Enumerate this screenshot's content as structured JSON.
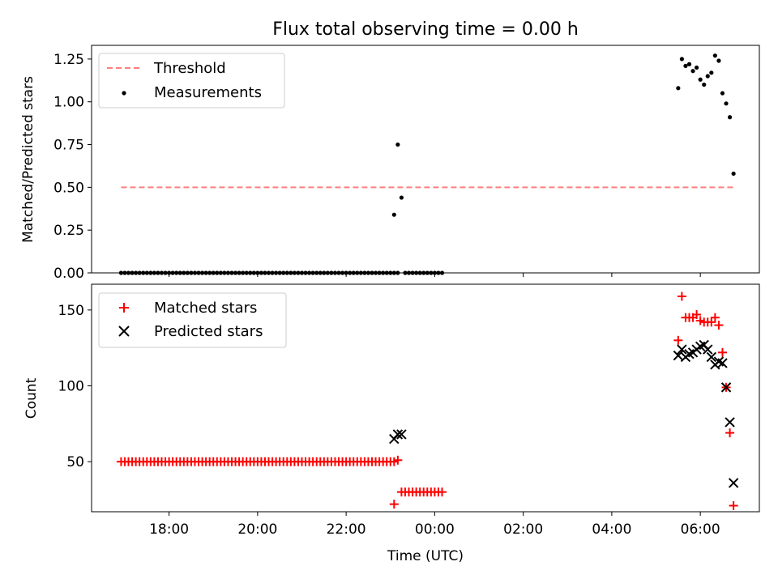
{
  "chart_data": [
    {
      "type": "scatter",
      "title": "Flux total observing time = 0.00 h",
      "xlabel": "",
      "ylabel": "Matched/Predicted stars",
      "ylim": [
        0,
        1.33
      ],
      "yticks": [
        "0.00",
        "0.25",
        "0.50",
        "0.75",
        "1.00",
        "1.25"
      ],
      "legend": {
        "placement": "top-left",
        "entries": [
          "Threshold",
          "Measurements"
        ]
      },
      "threshold": {
        "name": "Threshold",
        "value": 0.5,
        "x_start": "16:55",
        "x_end": "06:45",
        "color": "#ff7f7f"
      },
      "series": [
        {
          "name": "Measurements",
          "color": "#000000",
          "marker": "dot",
          "points": [
            [
              "16:55",
              0
            ],
            [
              "17:00",
              0
            ],
            [
              "17:05",
              0
            ],
            [
              "17:10",
              0
            ],
            [
              "17:15",
              0
            ],
            [
              "17:20",
              0
            ],
            [
              "17:25",
              0
            ],
            [
              "17:30",
              0
            ],
            [
              "17:35",
              0
            ],
            [
              "17:40",
              0
            ],
            [
              "17:45",
              0
            ],
            [
              "17:50",
              0
            ],
            [
              "17:55",
              0
            ],
            [
              "18:00",
              0
            ],
            [
              "18:05",
              0
            ],
            [
              "18:10",
              0
            ],
            [
              "18:15",
              0
            ],
            [
              "18:20",
              0
            ],
            [
              "18:25",
              0
            ],
            [
              "18:30",
              0
            ],
            [
              "18:35",
              0
            ],
            [
              "18:40",
              0
            ],
            [
              "18:45",
              0
            ],
            [
              "18:50",
              0
            ],
            [
              "18:55",
              0
            ],
            [
              "19:00",
              0
            ],
            [
              "19:05",
              0
            ],
            [
              "19:10",
              0
            ],
            [
              "19:15",
              0
            ],
            [
              "19:20",
              0
            ],
            [
              "19:25",
              0
            ],
            [
              "19:30",
              0
            ],
            [
              "19:35",
              0
            ],
            [
              "19:40",
              0
            ],
            [
              "19:45",
              0
            ],
            [
              "19:50",
              0
            ],
            [
              "19:55",
              0
            ],
            [
              "20:00",
              0
            ],
            [
              "20:05",
              0
            ],
            [
              "20:10",
              0
            ],
            [
              "20:15",
              0
            ],
            [
              "20:20",
              0
            ],
            [
              "20:25",
              0
            ],
            [
              "20:30",
              0
            ],
            [
              "20:35",
              0
            ],
            [
              "20:40",
              0
            ],
            [
              "20:45",
              0
            ],
            [
              "20:50",
              0
            ],
            [
              "20:55",
              0
            ],
            [
              "21:00",
              0
            ],
            [
              "21:05",
              0
            ],
            [
              "21:10",
              0
            ],
            [
              "21:15",
              0
            ],
            [
              "21:20",
              0
            ],
            [
              "21:25",
              0
            ],
            [
              "21:30",
              0
            ],
            [
              "21:35",
              0
            ],
            [
              "21:40",
              0
            ],
            [
              "21:45",
              0
            ],
            [
              "21:50",
              0
            ],
            [
              "21:55",
              0
            ],
            [
              "22:00",
              0
            ],
            [
              "22:05",
              0
            ],
            [
              "22:10",
              0
            ],
            [
              "22:15",
              0
            ],
            [
              "22:20",
              0
            ],
            [
              "22:25",
              0
            ],
            [
              "22:30",
              0
            ],
            [
              "22:35",
              0
            ],
            [
              "22:40",
              0
            ],
            [
              "22:45",
              0
            ],
            [
              "22:50",
              0
            ],
            [
              "22:55",
              0
            ],
            [
              "23:00",
              0
            ],
            [
              "23:05",
              0
            ],
            [
              "23:10",
              0
            ],
            [
              "23:05",
              0.34
            ],
            [
              "23:10",
              0.75
            ],
            [
              "23:15",
              0.44
            ],
            [
              "23:20",
              0
            ],
            [
              "23:25",
              0
            ],
            [
              "23:30",
              0
            ],
            [
              "23:35",
              0
            ],
            [
              "23:40",
              0
            ],
            [
              "23:45",
              0
            ],
            [
              "23:50",
              0
            ],
            [
              "23:55",
              0
            ],
            [
              "00:00",
              0
            ],
            [
              "00:05",
              0
            ],
            [
              "00:10",
              0
            ],
            [
              "05:30",
              1.08
            ],
            [
              "05:35",
              1.25
            ],
            [
              "05:40",
              1.21
            ],
            [
              "05:45",
              1.22
            ],
            [
              "05:50",
              1.18
            ],
            [
              "05:55",
              1.2
            ],
            [
              "06:00",
              1.13
            ],
            [
              "06:05",
              1.1
            ],
            [
              "06:10",
              1.15
            ],
            [
              "06:15",
              1.17
            ],
            [
              "06:20",
              1.27
            ],
            [
              "06:25",
              1.24
            ],
            [
              "06:30",
              1.05
            ],
            [
              "06:35",
              0.99
            ],
            [
              "06:40",
              0.91
            ],
            [
              "06:45",
              0.58
            ]
          ]
        }
      ]
    },
    {
      "type": "scatter",
      "title": "",
      "xlabel": "Time (UTC)",
      "ylabel": "Count",
      "ylim": [
        17,
        167
      ],
      "yticks": [
        "50",
        "100",
        "150"
      ],
      "xticks": [
        "18:00",
        "20:00",
        "22:00",
        "00:00",
        "02:00",
        "04:00",
        "06:00"
      ],
      "xlim": [
        "16:15",
        "07:20"
      ],
      "legend": {
        "placement": "top-left",
        "entries": [
          "Matched stars",
          "Predicted stars"
        ]
      },
      "series": [
        {
          "name": "Matched stars",
          "color": "#ff0000",
          "marker": "plus",
          "points": [
            [
              "16:55",
              50
            ],
            [
              "17:00",
              50
            ],
            [
              "17:05",
              50
            ],
            [
              "17:10",
              50
            ],
            [
              "17:15",
              50
            ],
            [
              "17:20",
              50
            ],
            [
              "17:25",
              50
            ],
            [
              "17:30",
              50
            ],
            [
              "17:35",
              50
            ],
            [
              "17:40",
              50
            ],
            [
              "17:45",
              50
            ],
            [
              "17:50",
              50
            ],
            [
              "17:55",
              50
            ],
            [
              "18:00",
              50
            ],
            [
              "18:05",
              50
            ],
            [
              "18:10",
              50
            ],
            [
              "18:15",
              50
            ],
            [
              "18:20",
              50
            ],
            [
              "18:25",
              50
            ],
            [
              "18:30",
              50
            ],
            [
              "18:35",
              50
            ],
            [
              "18:40",
              50
            ],
            [
              "18:45",
              50
            ],
            [
              "18:50",
              50
            ],
            [
              "18:55",
              50
            ],
            [
              "19:00",
              50
            ],
            [
              "19:05",
              50
            ],
            [
              "19:10",
              50
            ],
            [
              "19:15",
              50
            ],
            [
              "19:20",
              50
            ],
            [
              "19:25",
              50
            ],
            [
              "19:30",
              50
            ],
            [
              "19:35",
              50
            ],
            [
              "19:40",
              50
            ],
            [
              "19:45",
              50
            ],
            [
              "19:50",
              50
            ],
            [
              "19:55",
              50
            ],
            [
              "20:00",
              50
            ],
            [
              "20:05",
              50
            ],
            [
              "20:10",
              50
            ],
            [
              "20:15",
              50
            ],
            [
              "20:20",
              50
            ],
            [
              "20:25",
              50
            ],
            [
              "20:30",
              50
            ],
            [
              "20:35",
              50
            ],
            [
              "20:40",
              50
            ],
            [
              "20:45",
              50
            ],
            [
              "20:50",
              50
            ],
            [
              "20:55",
              50
            ],
            [
              "21:00",
              50
            ],
            [
              "21:05",
              50
            ],
            [
              "21:10",
              50
            ],
            [
              "21:15",
              50
            ],
            [
              "21:20",
              50
            ],
            [
              "21:25",
              50
            ],
            [
              "21:30",
              50
            ],
            [
              "21:35",
              50
            ],
            [
              "21:40",
              50
            ],
            [
              "21:45",
              50
            ],
            [
              "21:50",
              50
            ],
            [
              "21:55",
              50
            ],
            [
              "22:00",
              50
            ],
            [
              "22:05",
              50
            ],
            [
              "22:10",
              50
            ],
            [
              "22:15",
              50
            ],
            [
              "22:20",
              50
            ],
            [
              "22:25",
              50
            ],
            [
              "22:30",
              50
            ],
            [
              "22:35",
              50
            ],
            [
              "22:40",
              50
            ],
            [
              "22:45",
              50
            ],
            [
              "22:50",
              50
            ],
            [
              "22:55",
              50
            ],
            [
              "23:00",
              50
            ],
            [
              "23:05",
              50
            ],
            [
              "23:05",
              22
            ],
            [
              "23:10",
              51
            ],
            [
              "23:15",
              30
            ],
            [
              "23:20",
              30
            ],
            [
              "23:25",
              30
            ],
            [
              "23:30",
              30
            ],
            [
              "23:35",
              30
            ],
            [
              "23:40",
              30
            ],
            [
              "23:45",
              30
            ],
            [
              "23:50",
              30
            ],
            [
              "23:55",
              30
            ],
            [
              "00:00",
              30
            ],
            [
              "00:05",
              30
            ],
            [
              "00:10",
              30
            ],
            [
              "05:30",
              130
            ],
            [
              "05:35",
              159
            ],
            [
              "05:40",
              145
            ],
            [
              "05:45",
              145
            ],
            [
              "05:50",
              145
            ],
            [
              "05:55",
              147
            ],
            [
              "06:00",
              143
            ],
            [
              "06:05",
              142
            ],
            [
              "06:10",
              142
            ],
            [
              "06:15",
              142
            ],
            [
              "06:20",
              145
            ],
            [
              "06:25",
              140
            ],
            [
              "06:30",
              122
            ],
            [
              "06:35",
              99
            ],
            [
              "06:40",
              69
            ],
            [
              "06:45",
              21
            ]
          ]
        },
        {
          "name": "Predicted stars",
          "color": "#000000",
          "marker": "x",
          "points": [
            [
              "23:05",
              65
            ],
            [
              "23:10",
              68
            ],
            [
              "23:15",
              68
            ],
            [
              "05:30",
              120
            ],
            [
              "05:35",
              124
            ],
            [
              "05:40",
              119
            ],
            [
              "05:45",
              121
            ],
            [
              "05:50",
              122
            ],
            [
              "05:55",
              124
            ],
            [
              "06:00",
              126
            ],
            [
              "06:05",
              127
            ],
            [
              "06:10",
              124
            ],
            [
              "06:15",
              119
            ],
            [
              "06:20",
              114
            ],
            [
              "06:25",
              116
            ],
            [
              "06:30",
              115
            ],
            [
              "06:35",
              99
            ],
            [
              "06:40",
              76
            ],
            [
              "06:45",
              36
            ]
          ]
        }
      ]
    }
  ]
}
